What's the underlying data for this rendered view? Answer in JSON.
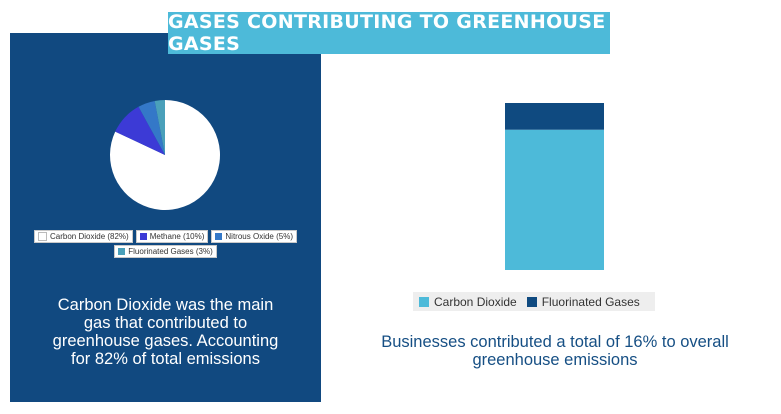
{
  "title": "GASES CONTRIBUTING TO GREENHOUSE GASES",
  "colors": {
    "banner": "#4dbad9",
    "panel": "#114980",
    "carbon_dioxide": "#ffffff",
    "methane": "#3c3ad6",
    "nitrous_oxide": "#3478c8",
    "fluorinated_gases": "#4aa0ba",
    "bar_carbon_dioxide": "#4dbad9",
    "bar_fluorinated_gases": "#0f4a80",
    "caption_right": "#164f84"
  },
  "left_caption_lines": [
    "Carbon Dioxide was the main",
    "gas that contributed to",
    "greenhouse gases. Accounting",
    "for 82% of total emissions"
  ],
  "right_caption_lines": [
    "Businesses contributed a total of 16% to overall",
    "greenhouse emissions"
  ],
  "chart_data": [
    {
      "type": "pie",
      "title": "",
      "legend_position": "bottom",
      "slices": [
        {
          "label": "Carbon Dioxide (82%)",
          "value": 82,
          "color": "#ffffff"
        },
        {
          "label": "Methane (10%)",
          "value": 10,
          "color": "#3c3ad6"
        },
        {
          "label": "Nitrous Oxide (5%)",
          "value": 5,
          "color": "#3478c8"
        },
        {
          "label": "Fluorinated Gases (3%)",
          "value": 3,
          "color": "#4aa0ba"
        }
      ]
    },
    {
      "type": "bar",
      "stacked": true,
      "title": "",
      "legend_position": "bottom",
      "categories": [
        ""
      ],
      "series": [
        {
          "name": "Carbon Dioxide",
          "values": [
            84
          ],
          "color": "#4dbad9"
        },
        {
          "name": "Fluorinated Gases",
          "values": [
            16
          ],
          "color": "#0f4a80"
        }
      ],
      "ylim": [
        0,
        100
      ]
    }
  ]
}
